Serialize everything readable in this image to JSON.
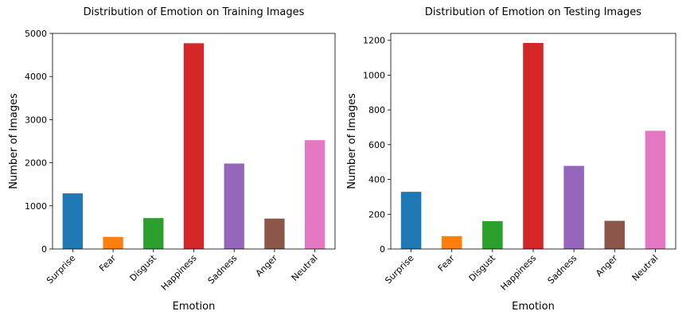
{
  "chart_data": [
    {
      "type": "bar",
      "title": "Distribution of Emotion on Training Images",
      "xlabel": "Emotion",
      "ylabel": "Number of Images",
      "categories": [
        "Surprise",
        "Fear",
        "Disgust",
        "Happiness",
        "Sadness",
        "Anger",
        "Neutral"
      ],
      "values": [
        1290,
        281,
        717,
        4772,
        1982,
        705,
        2524
      ],
      "colors": [
        "#1f77b4",
        "#ff7f0e",
        "#2ca02c",
        "#d62728",
        "#9467bd",
        "#8c564b",
        "#e377c2"
      ],
      "ylim": [
        0,
        5000
      ],
      "yticks": [
        "0",
        "1000",
        "2000",
        "3000",
        "4000",
        "5000"
      ],
      "grid": false,
      "legend": "none"
    },
    {
      "type": "bar",
      "title": "Distribution of Emotion on Testing Images",
      "xlabel": "Emotion",
      "ylabel": "Number of Images",
      "categories": [
        "Surprise",
        "Fear",
        "Disgust",
        "Happiness",
        "Sadness",
        "Anger",
        "Neutral"
      ],
      "values": [
        329,
        74,
        160,
        1185,
        478,
        162,
        680
      ],
      "colors": [
        "#1f77b4",
        "#ff7f0e",
        "#2ca02c",
        "#d62728",
        "#9467bd",
        "#8c564b",
        "#e377c2"
      ],
      "ylim": [
        0,
        1240
      ],
      "yticks": [
        "0",
        "200",
        "400",
        "600",
        "800",
        "1000",
        "1200"
      ],
      "grid": false,
      "legend": "none"
    }
  ]
}
